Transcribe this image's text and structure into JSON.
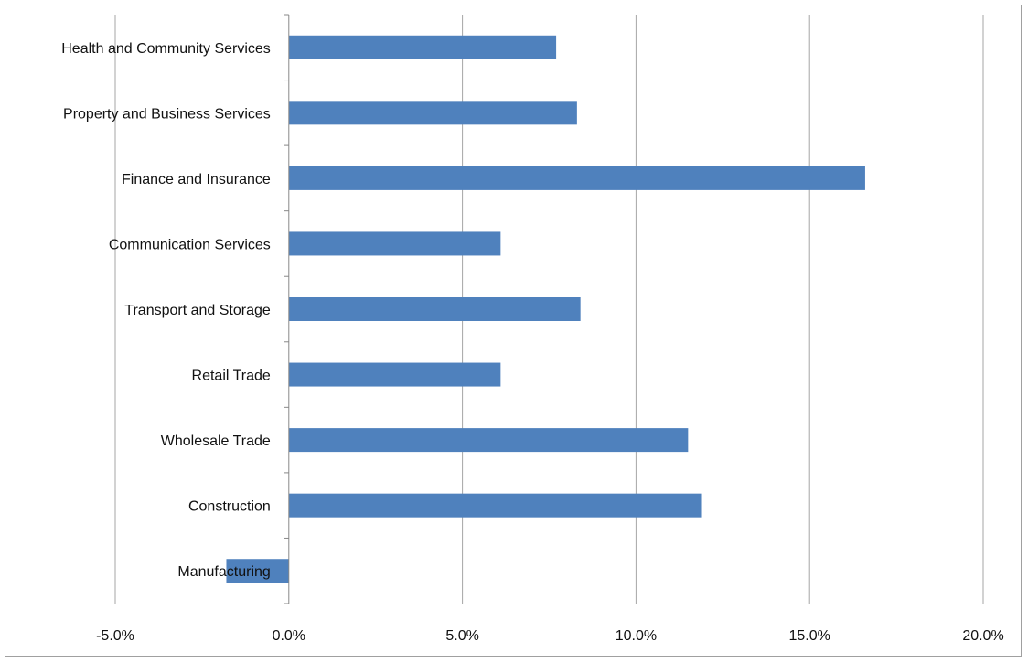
{
  "chart_data": {
    "type": "bar",
    "orientation": "horizontal",
    "title": "",
    "xlabel": "",
    "ylabel": "",
    "categories": [
      "Health and Community Services",
      "Property and Business Services",
      "Finance and Insurance",
      "Communication Services",
      "Transport and Storage",
      "Retail Trade",
      "Wholesale Trade",
      "Construction",
      "Manufacturing"
    ],
    "values": [
      7.7,
      8.3,
      16.6,
      6.1,
      8.4,
      6.1,
      11.5,
      11.9,
      -1.8
    ],
    "value_unit": "%",
    "xlim": [
      -5,
      20
    ],
    "xticks": [
      -5,
      0,
      5,
      10,
      15,
      20
    ],
    "xtick_labels": [
      "-5.0%",
      "0.0%",
      "5.0%",
      "10.0%",
      "15.0%",
      "20.0%"
    ],
    "grid": "vertical",
    "legend": "none",
    "bar_color": "#4F81BD",
    "grid_color": "#a6a6a6",
    "axis_color": "#888888"
  }
}
